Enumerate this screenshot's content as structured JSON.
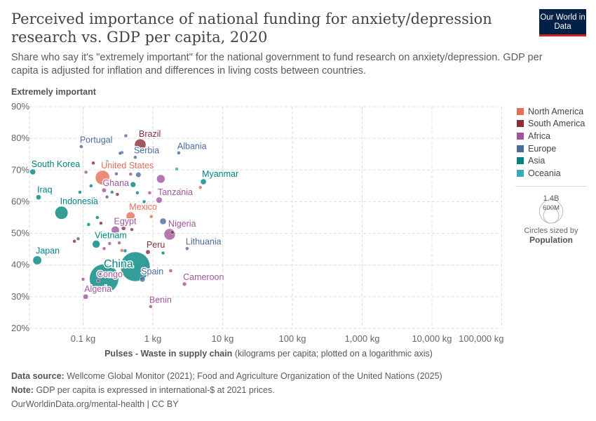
{
  "header": {
    "title": "Perceived importance of national funding for anxiety/depression research vs. GDP per capita, 2020",
    "subtitle": "Share who say it's \"extremely important\" for the national government to fund research on anxiety/depression. GDP per capita is adjusted for inflation and differences in living costs between countries.",
    "logo": "Our World in Data"
  },
  "footer": {
    "source_label": "Data source:",
    "source": "Wellcome Global Monitor (2021); Food and Agriculture Organization of the United Nations (2025)",
    "note_label": "Note:",
    "note": "GDP per capita is expressed in international-$ at 2021 prices.",
    "credit": "OurWorldinData.org/mental-health | CC BY"
  },
  "chart_data": {
    "type": "scatter",
    "title": "Perceived importance of national funding for anxiety/depression research vs. GDP per capita, 2020",
    "ylabel": "Extremely important",
    "xlabel_bold": "Pulses - Waste in supply chain",
    "xlabel_rest": "(kilograms per capita; plotted on a logarithmic axis)",
    "x_scale": "log",
    "xlim": [
      0.017,
      100000
    ],
    "ylim": [
      20,
      90
    ],
    "grid": true,
    "x_ticks": [
      {
        "v": 0.1,
        "label": "0.1 kg"
      },
      {
        "v": 1,
        "label": "1 kg"
      },
      {
        "v": 10,
        "label": "10 kg"
      },
      {
        "v": 100,
        "label": "100 kg"
      },
      {
        "v": 1000,
        "label": "1,000 kg"
      },
      {
        "v": 10000,
        "label": "10,000 kg"
      },
      {
        "v": 100000,
        "label": "100,000 kg"
      }
    ],
    "y_ticks": [
      {
        "v": 20,
        "label": "20%"
      },
      {
        "v": 30,
        "label": "30%"
      },
      {
        "v": 40,
        "label": "40%"
      },
      {
        "v": 50,
        "label": "50%"
      },
      {
        "v": 60,
        "label": "60%"
      },
      {
        "v": 70,
        "label": "70%"
      },
      {
        "v": 80,
        "label": "80%"
      },
      {
        "v": 90,
        "label": "90%"
      }
    ],
    "legend_placement": "right",
    "regions": [
      {
        "name": "North America",
        "color": "#e56e5a"
      },
      {
        "name": "South America",
        "color": "#883039"
      },
      {
        "name": "Africa",
        "color": "#a2559c"
      },
      {
        "name": "Europe",
        "color": "#4c6a9c"
      },
      {
        "name": "Asia",
        "color": "#00847e"
      },
      {
        "name": "Oceania",
        "color": "#38aaba"
      }
    ],
    "size_legend": {
      "values": [
        "1.4B",
        "600M"
      ],
      "caption": "Circles sized by",
      "variable": "Population"
    },
    "points": [
      {
        "label": "Brazil",
        "region": "South America",
        "x": 0.66,
        "y": 78.0,
        "pop": 213
      },
      {
        "label": "Portugal",
        "region": "Europe",
        "x": 0.094,
        "y": 77.4,
        "pop": 10
      },
      {
        "label": "Serbia",
        "region": "Europe",
        "x": 0.56,
        "y": 74.0,
        "pop": 7
      },
      {
        "label": "Albania",
        "region": "Europe",
        "x": 2.35,
        "y": 75.4,
        "pop": 3
      },
      {
        "label": "South Korea",
        "region": "Asia",
        "x": 0.019,
        "y": 69.4,
        "pop": 52
      },
      {
        "label": "United States",
        "region": "North America",
        "x": 0.19,
        "y": 67.6,
        "pop": 335
      },
      {
        "label": "Ghana",
        "region": "Africa",
        "x": 0.2,
        "y": 63.6,
        "pop": 32
      },
      {
        "label": "Myanmar",
        "region": "Asia",
        "x": 5.3,
        "y": 66.3,
        "pop": 54
      },
      {
        "label": "Tanzania",
        "region": "Africa",
        "x": 1.23,
        "y": 60.5,
        "pop": 61
      },
      {
        "label": "Iraq",
        "region": "Asia",
        "x": 0.023,
        "y": 61.4,
        "pop": 42
      },
      {
        "label": "Indonesia",
        "region": "Asia",
        "x": 0.049,
        "y": 56.5,
        "pop": 274
      },
      {
        "label": "Mexico",
        "region": "North America",
        "x": 0.48,
        "y": 55.4,
        "pop": 126
      },
      {
        "label": "Egypt",
        "region": "Africa",
        "x": 0.29,
        "y": 51.0,
        "pop": 107
      },
      {
        "label": "Nigeria",
        "region": "Africa",
        "x": 1.74,
        "y": 49.7,
        "pop": 208
      },
      {
        "label": "Lithuania",
        "region": "Europe",
        "x": 3.1,
        "y": 45.2,
        "pop": 3
      },
      {
        "label": "Vietnam",
        "region": "Asia",
        "x": 0.154,
        "y": 46.6,
        "pop": 97
      },
      {
        "label": "Peru",
        "region": "South America",
        "x": 0.85,
        "y": 44.1,
        "pop": 33
      },
      {
        "label": "Japan",
        "region": "Asia",
        "x": 0.022,
        "y": 41.5,
        "pop": 126
      },
      {
        "label": "China",
        "region": "Asia",
        "x": 0.56,
        "y": 39.5,
        "pop": 1424
      },
      {
        "label": "",
        "region": "Asia",
        "x": 0.2,
        "y": 35.7,
        "pop": 1396
      },
      {
        "label": "Spain",
        "region": "Europe",
        "x": 0.71,
        "y": 35.5,
        "pop": 47
      },
      {
        "label": "Congo",
        "region": "Africa",
        "x": 0.165,
        "y": 35.0,
        "pop": 6
      },
      {
        "label": "Cameroon",
        "region": "Africa",
        "x": 2.84,
        "y": 34.0,
        "pop": 27
      },
      {
        "label": "Algeria",
        "region": "Africa",
        "x": 0.109,
        "y": 30.0,
        "pop": 44
      },
      {
        "label": "Benin",
        "region": "Africa",
        "x": 0.93,
        "y": 26.9,
        "pop": 13
      },
      {
        "label": "",
        "region": "Europe",
        "x": 0.41,
        "y": 80.8,
        "pop": 5
      },
      {
        "label": "",
        "region": "Europe",
        "x": 0.36,
        "y": 75.5,
        "pop": 18
      },
      {
        "label": "",
        "region": "Europe",
        "x": 0.34,
        "y": 75.3,
        "pop": 5
      },
      {
        "label": "",
        "region": "Europe",
        "x": 0.62,
        "y": 68.5,
        "pop": 45
      },
      {
        "label": "",
        "region": "Europe",
        "x": 0.3,
        "y": 68.8,
        "pop": 5
      },
      {
        "label": "",
        "region": "Europe",
        "x": 1.4,
        "y": 53.8,
        "pop": 67
      },
      {
        "label": "",
        "region": "Europe",
        "x": 0.26,
        "y": 63.0,
        "pop": 9
      },
      {
        "label": "",
        "region": "Europe",
        "x": 0.22,
        "y": 61.5,
        "pop": 4
      },
      {
        "label": "",
        "region": "Europe",
        "x": 0.085,
        "y": 48.3,
        "pop": 4
      },
      {
        "label": "",
        "region": "Asia",
        "x": 0.22,
        "y": 72.6,
        "pop": 9
      },
      {
        "label": "",
        "region": "Asia",
        "x": 0.52,
        "y": 65.4,
        "pop": 50
      },
      {
        "label": "",
        "region": "Asia",
        "x": 0.13,
        "y": 65.0,
        "pop": 5
      },
      {
        "label": "",
        "region": "Asia",
        "x": 0.09,
        "y": 63.0,
        "pop": 4
      },
      {
        "label": "",
        "region": "Asia",
        "x": 0.14,
        "y": 60.8,
        "pop": 30
      },
      {
        "label": "",
        "region": "Asia",
        "x": 0.75,
        "y": 60.0,
        "pop": 5
      },
      {
        "label": "",
        "region": "Asia",
        "x": 0.6,
        "y": 62.8,
        "pop": 5
      },
      {
        "label": "",
        "region": "Asia",
        "x": 0.16,
        "y": 55.0,
        "pop": 5
      },
      {
        "label": "",
        "region": "Asia",
        "x": 0.12,
        "y": 52.8,
        "pop": 8
      },
      {
        "label": "",
        "region": "Asia",
        "x": 1.4,
        "y": 43.8,
        "pop": 5
      },
      {
        "label": "",
        "region": "Asia",
        "x": 0.4,
        "y": 44.5,
        "pop": 6
      },
      {
        "label": "",
        "region": "Oceania",
        "x": 2.2,
        "y": 70.3,
        "pop": 5
      },
      {
        "label": "",
        "region": "Africa",
        "x": 0.11,
        "y": 69.3,
        "pop": 5
      },
      {
        "label": "",
        "region": "Africa",
        "x": 1.3,
        "y": 67.2,
        "pop": 115
      },
      {
        "label": "",
        "region": "Africa",
        "x": 0.48,
        "y": 68.7,
        "pop": 5
      },
      {
        "label": "",
        "region": "Africa",
        "x": 2.5,
        "y": 63.6,
        "pop": 10
      },
      {
        "label": "",
        "region": "Africa",
        "x": 0.9,
        "y": 62.8,
        "pop": 5
      },
      {
        "label": "",
        "region": "Africa",
        "x": 0.1,
        "y": 35.5,
        "pop": 12
      },
      {
        "label": "",
        "region": "Africa",
        "x": 1.8,
        "y": 38.2,
        "pop": 6
      },
      {
        "label": "",
        "region": "Africa",
        "x": 0.24,
        "y": 46.8,
        "pop": 6
      },
      {
        "label": "",
        "region": "Africa",
        "x": 0.33,
        "y": 47.0,
        "pop": 6
      },
      {
        "label": "",
        "region": "Africa",
        "x": 0.2,
        "y": 45.2,
        "pop": 5
      },
      {
        "label": "",
        "region": "North America",
        "x": 4.8,
        "y": 64.5,
        "pop": 20
      },
      {
        "label": "",
        "region": "North America",
        "x": 0.95,
        "y": 55.3,
        "pop": 4
      },
      {
        "label": "",
        "region": "North America",
        "x": 0.36,
        "y": 44.6,
        "pop": 6
      },
      {
        "label": "",
        "region": "South America",
        "x": 0.14,
        "y": 72.2,
        "pop": 8
      },
      {
        "label": "",
        "region": "South America",
        "x": 0.31,
        "y": 62.3,
        "pop": 5
      },
      {
        "label": "",
        "region": "South America",
        "x": 0.18,
        "y": 53.2,
        "pop": 18
      },
      {
        "label": "",
        "region": "South America",
        "x": 0.075,
        "y": 47.5,
        "pop": 5
      },
      {
        "label": "",
        "region": "South America",
        "x": 0.38,
        "y": 51.6,
        "pop": 30
      },
      {
        "label": "",
        "region": "South America",
        "x": 0.5,
        "y": 51.2,
        "pop": 5
      },
      {
        "label": "",
        "region": "South America",
        "x": 1.9,
        "y": 50.3,
        "pop": 10
      }
    ]
  }
}
